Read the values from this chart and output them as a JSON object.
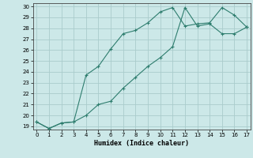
{
  "xlabel": "Humidex (Indice chaleur)",
  "ylabel": "",
  "background_color": "#cce8e8",
  "grid_color": "#aacccc",
  "line_color": "#2e7d6e",
  "x_line1": [
    0,
    1,
    2,
    3,
    4,
    5,
    6,
    7,
    8,
    9,
    10,
    11,
    12,
    13,
    14,
    15,
    16,
    17
  ],
  "y_line1": [
    19.4,
    18.8,
    19.3,
    19.4,
    23.7,
    24.5,
    26.1,
    27.5,
    27.8,
    28.5,
    29.5,
    29.9,
    28.2,
    28.4,
    28.5,
    29.9,
    29.2,
    28.1
  ],
  "x_line2": [
    0,
    1,
    2,
    3,
    4,
    5,
    6,
    7,
    8,
    9,
    10,
    11,
    12,
    13,
    14,
    15,
    16,
    17
  ],
  "y_line2": [
    19.4,
    18.8,
    19.3,
    19.4,
    20.0,
    21.0,
    21.3,
    22.5,
    23.5,
    24.5,
    25.3,
    26.3,
    29.9,
    28.2,
    28.4,
    27.5,
    27.5,
    28.1
  ],
  "xlim": [
    -0.3,
    17.3
  ],
  "ylim": [
    18.7,
    30.3
  ],
  "xticks": [
    0,
    1,
    2,
    3,
    4,
    5,
    6,
    7,
    8,
    9,
    10,
    11,
    12,
    13,
    14,
    15,
    16,
    17
  ],
  "yticks": [
    19,
    20,
    21,
    22,
    23,
    24,
    25,
    26,
    27,
    28,
    29,
    30
  ]
}
